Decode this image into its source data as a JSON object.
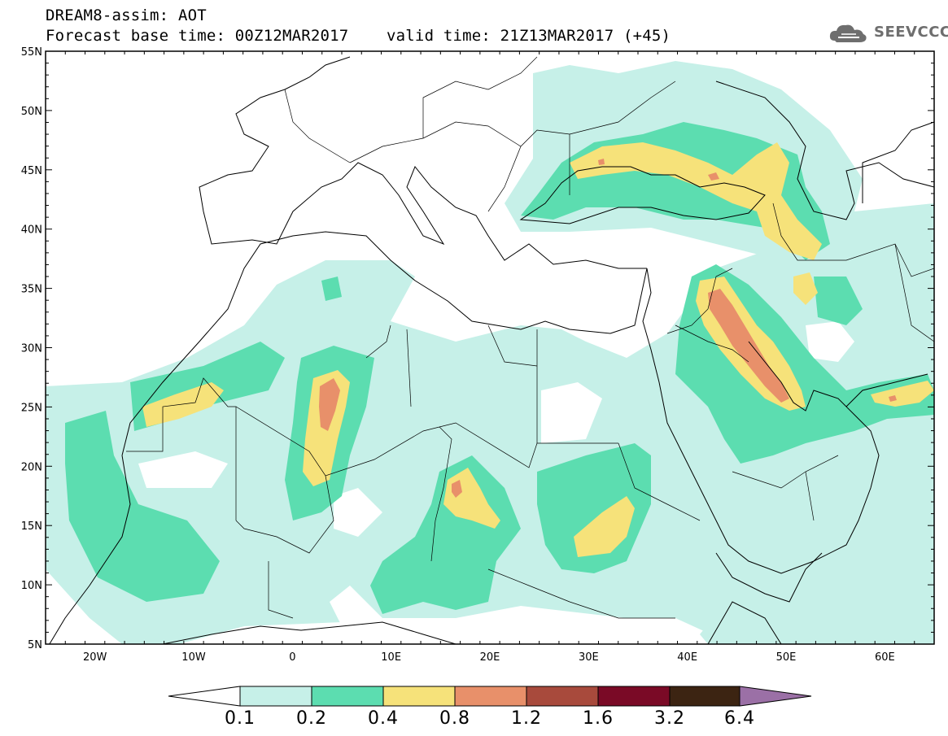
{
  "header": {
    "title": "DREAM8-assim: AOT",
    "base_time": "Forecast base time: 00Z12MAR2017",
    "valid_time": "valid time: 21Z13MAR2017 (+45)"
  },
  "logo": {
    "text": "SEEVCCC",
    "icon": "cloud-icon"
  },
  "map": {
    "lon_range": [
      -25,
      65
    ],
    "lat_range": [
      5,
      55
    ],
    "lat_ticks": [
      "5N",
      "10N",
      "15N",
      "20N",
      "25N",
      "30N",
      "35N",
      "40N",
      "45N",
      "50N",
      "55N"
    ],
    "lon_ticks": [
      "20W",
      "10W",
      "0",
      "10E",
      "20E",
      "30E",
      "40E",
      "50E",
      "60E"
    ]
  },
  "colorbar": {
    "labels": [
      "0.1",
      "0.2",
      "0.4",
      "0.8",
      "1.2",
      "1.6",
      "3.2",
      "6.4"
    ],
    "colors": {
      "under": "#ffffff",
      "c1": "#c6f0e8",
      "c2": "#5cddb0",
      "c3": "#f6e27a",
      "c4": "#e8906a",
      "c5": "#a84a3c",
      "c6": "#7a0a26",
      "c7": "#3c2412",
      "over": "#9b70a6"
    }
  }
}
